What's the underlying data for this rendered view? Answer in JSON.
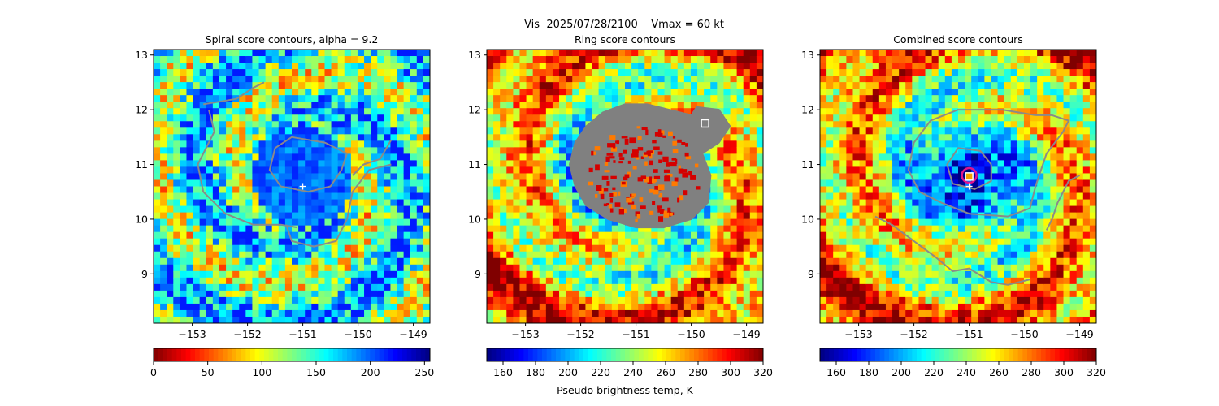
{
  "figure": {
    "suptitle": "Vis  2025/07/28/2100    Vmax = 60 kt"
  },
  "chart_data": [
    {
      "type": "heatmap",
      "title": "Spiral score contours, alpha =  9.2",
      "x_ticks": [
        -153,
        -152,
        -151,
        -150,
        -149
      ],
      "y_ticks": [
        9,
        10,
        11,
        12,
        13
      ],
      "xlim": [
        -153.7,
        -148.7
      ],
      "ylim": [
        8.1,
        13.1
      ],
      "colormap": "jet",
      "colorbar": {
        "ticks": [
          0,
          50,
          100,
          150,
          200,
          250
        ],
        "range": [
          0,
          255
        ],
        "label": ""
      },
      "center_marker": {
        "x": -151.0,
        "y": 10.6
      },
      "contours": [
        [
          [
            -150.2,
            11.2
          ],
          [
            -150.6,
            11.4
          ],
          [
            -151.2,
            11.5
          ],
          [
            -151.5,
            11.3
          ],
          [
            -151.6,
            10.9
          ],
          [
            -151.4,
            10.6
          ],
          [
            -150.9,
            10.5
          ],
          [
            -150.5,
            10.6
          ],
          [
            -150.3,
            10.9
          ],
          [
            -150.2,
            11.2
          ]
        ],
        [
          [
            -152.7,
            12.0
          ],
          [
            -152.6,
            11.6
          ],
          [
            -152.9,
            11.0
          ],
          [
            -152.8,
            10.5
          ],
          [
            -152.4,
            10.1
          ],
          [
            -151.9,
            9.9
          ],
          [
            -151.4,
            9.9
          ],
          [
            -151.1,
            9.85
          ]
        ],
        [
          [
            -152.8,
            12.1
          ],
          [
            -152.2,
            12.2
          ],
          [
            -151.9,
            12.4
          ],
          [
            -151.7,
            12.5
          ]
        ],
        [
          [
            -151.3,
            9.9
          ],
          [
            -151.2,
            9.6
          ],
          [
            -150.8,
            9.5
          ],
          [
            -150.4,
            9.6
          ],
          [
            -150.2,
            10.0
          ],
          [
            -150.1,
            10.5
          ],
          [
            -149.8,
            10.9
          ],
          [
            -149.4,
            11.0
          ]
        ],
        [
          [
            -149.4,
            11.45
          ],
          [
            -149.6,
            11.1
          ],
          [
            -149.9,
            11.0
          ],
          [
            -150.1,
            10.8
          ]
        ]
      ]
    },
    {
      "type": "heatmap",
      "title": "Ring score contours",
      "x_ticks": [
        -153,
        -152,
        -151,
        -150,
        -149
      ],
      "y_ticks": [
        9,
        10,
        11,
        12,
        13
      ],
      "xlim": [
        -153.7,
        -148.7
      ],
      "ylim": [
        8.1,
        13.1
      ],
      "colormap": "jet",
      "colorbar": {
        "ticks": [
          160,
          180,
          200,
          220,
          240,
          260,
          280,
          300,
          320
        ],
        "range": [
          150,
          320
        ],
        "label": "Pseudo brightness temp, K"
      },
      "square_marker": {
        "x": -149.75,
        "y": 11.75
      },
      "masked_region": [
        [
          -150.0,
          11.9
        ],
        [
          -150.4,
          12.0
        ],
        [
          -150.8,
          12.1
        ],
        [
          -151.2,
          12.1
        ],
        [
          -151.6,
          11.95
        ],
        [
          -151.9,
          11.7
        ],
        [
          -152.1,
          11.4
        ],
        [
          -152.2,
          11.0
        ],
        [
          -152.1,
          10.6
        ],
        [
          -151.9,
          10.25
        ],
        [
          -151.5,
          10.0
        ],
        [
          -151.0,
          9.85
        ],
        [
          -150.5,
          9.85
        ],
        [
          -150.0,
          10.0
        ],
        [
          -149.7,
          10.3
        ],
        [
          -149.65,
          10.8
        ],
        [
          -149.8,
          11.2
        ],
        [
          -149.5,
          11.4
        ],
        [
          -149.3,
          11.7
        ],
        [
          -149.5,
          12.0
        ],
        [
          -149.9,
          12.05
        ],
        [
          -150.0,
          11.9
        ]
      ]
    },
    {
      "type": "heatmap",
      "title": "Combined score contours",
      "x_ticks": [
        -153,
        -152,
        -151,
        -150,
        -149
      ],
      "y_ticks": [
        9,
        10,
        11,
        12,
        13
      ],
      "xlim": [
        -153.7,
        -148.7
      ],
      "ylim": [
        8.1,
        13.1
      ],
      "colormap": "jet",
      "colorbar": {
        "ticks": [
          160,
          180,
          200,
          220,
          240,
          260,
          280,
          300,
          320
        ],
        "range": [
          150,
          320
        ],
        "label": ""
      },
      "center_marker": {
        "x": -151.0,
        "y": 10.6
      },
      "square_marker": {
        "x": -151.0,
        "y": 10.78
      },
      "circle_marker": {
        "x": -151.0,
        "y": 10.8
      },
      "contours": [
        [
          [
            -150.6,
            11.0
          ],
          [
            -150.8,
            11.25
          ],
          [
            -151.2,
            11.3
          ],
          [
            -151.4,
            11.0
          ],
          [
            -151.3,
            10.65
          ],
          [
            -150.9,
            10.55
          ],
          [
            -150.6,
            10.7
          ],
          [
            -150.6,
            11.0
          ]
        ],
        [
          [
            -149.8,
            11.9
          ],
          [
            -150.4,
            12.0
          ],
          [
            -151.2,
            12.0
          ],
          [
            -151.7,
            11.8
          ],
          [
            -152.0,
            11.4
          ],
          [
            -152.1,
            10.9
          ],
          [
            -151.9,
            10.5
          ],
          [
            -151.5,
            10.3
          ],
          [
            -151.0,
            10.1
          ],
          [
            -150.3,
            10.05
          ],
          [
            -149.9,
            10.2
          ],
          [
            -149.8,
            10.6
          ],
          [
            -149.6,
            11.2
          ],
          [
            -149.3,
            11.6
          ],
          [
            -149.2,
            11.8
          ],
          [
            -149.5,
            11.9
          ],
          [
            -149.8,
            11.9
          ]
        ],
        [
          [
            -152.7,
            10.05
          ],
          [
            -152.4,
            9.9
          ],
          [
            -152.0,
            9.6
          ],
          [
            -151.6,
            9.3
          ],
          [
            -151.3,
            9.05
          ],
          [
            -151.0,
            9.1
          ],
          [
            -150.6,
            8.85
          ],
          [
            -150.3,
            8.8
          ],
          [
            -149.9,
            8.9
          ]
        ],
        [
          [
            -149.0,
            10.8
          ],
          [
            -149.2,
            10.7
          ],
          [
            -149.4,
            10.3
          ],
          [
            -149.5,
            10.0
          ],
          [
            -149.6,
            9.8
          ]
        ]
      ]
    }
  ]
}
